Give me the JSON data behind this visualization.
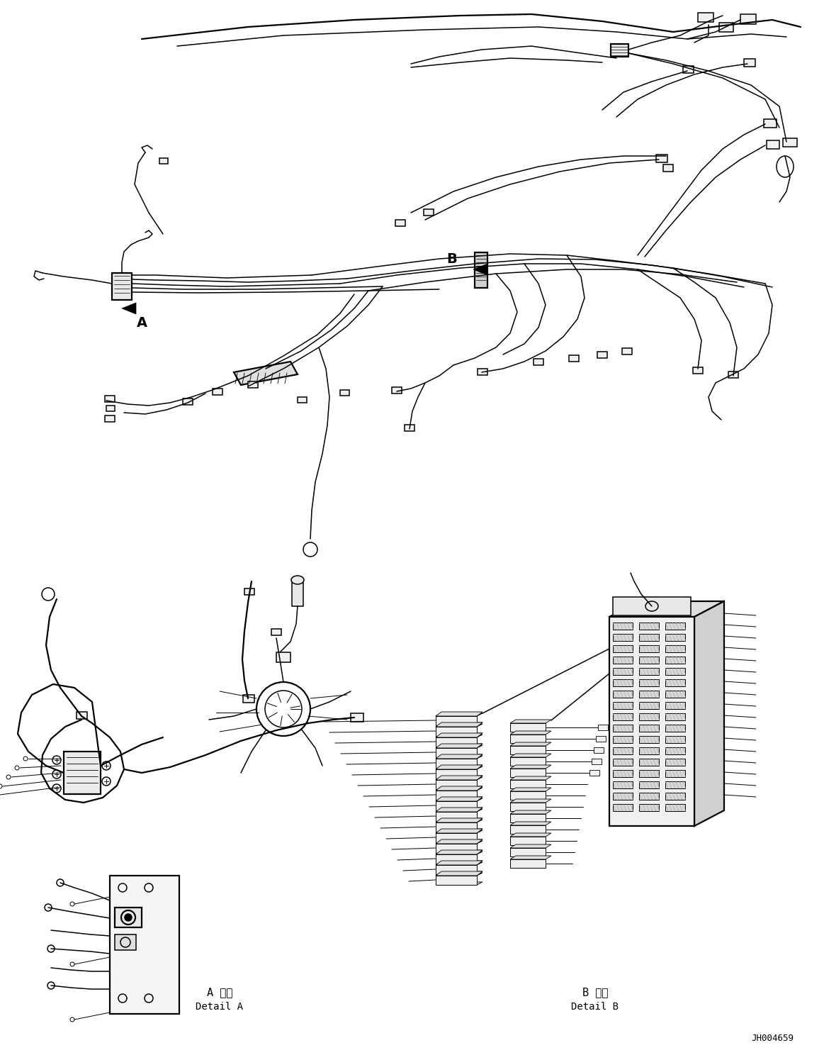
{
  "bg_color": "#ffffff",
  "line_color": "#000000",
  "fig_width": 11.63,
  "fig_height": 14.88,
  "dpi": 100,
  "label_A": "A",
  "label_B": "B",
  "detail_A_title_jp": "A 詳細",
  "detail_A_title_en": "Detail A",
  "detail_B_title_jp": "B 詳細",
  "detail_B_title_en": "Detail B",
  "doc_number": "JH004659",
  "font_family": "DejaVu Sans Mono",
  "lw_wire": 1.1,
  "lw_thick": 1.6,
  "lw_thin": 0.7,
  "connector_color": "#f0f0f0",
  "connector_edge": "#000000"
}
